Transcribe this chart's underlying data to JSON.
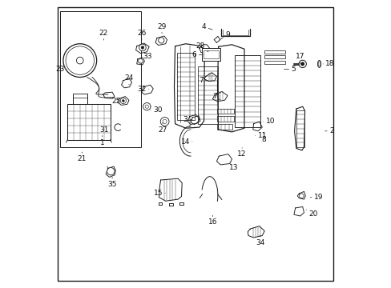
{
  "background_color": "#f5f5f5",
  "border_color": "#333333",
  "fig_width": 4.89,
  "fig_height": 3.6,
  "dpi": 100,
  "line_color": "#1a1a1a",
  "text_color": "#111111",
  "font_size": 6.5,
  "lw": 0.65,
  "part_labels": {
    "1": [
      0.175,
      0.535,
      0.0,
      -0.03
    ],
    "2": [
      0.942,
      0.545,
      0.028,
      0.0
    ],
    "3": [
      0.493,
      0.585,
      -0.03,
      0.0
    ],
    "4": [
      0.563,
      0.895,
      -0.035,
      0.012
    ],
    "5": [
      0.8,
      0.76,
      0.038,
      0.0
    ],
    "6": [
      0.53,
      0.81,
      -0.035,
      0.0
    ],
    "7a": [
      0.547,
      0.72,
      -0.03,
      0.0
    ],
    "7b": [
      0.59,
      0.65,
      -0.025,
      0.015
    ],
    "8": [
      0.735,
      0.545,
      0.0,
      -0.03
    ],
    "9": [
      0.58,
      0.86,
      0.03,
      0.02
    ],
    "10": [
      0.728,
      0.578,
      0.03,
      0.0
    ],
    "11": [
      0.7,
      0.53,
      0.03,
      0.0
    ],
    "12": [
      0.66,
      0.493,
      0.0,
      -0.028
    ],
    "13": [
      0.614,
      0.443,
      0.018,
      -0.025
    ],
    "14": [
      0.493,
      0.508,
      -0.03,
      0.0
    ],
    "15": [
      0.4,
      0.33,
      -0.03,
      0.0
    ],
    "16": [
      0.558,
      0.258,
      0.0,
      -0.03
    ],
    "17": [
      0.862,
      0.778,
      0.0,
      0.025
    ],
    "18": [
      0.935,
      0.778,
      0.03,
      0.0
    ],
    "19": [
      0.897,
      0.315,
      0.028,
      0.0
    ],
    "20": [
      0.882,
      0.272,
      0.025,
      -0.015
    ],
    "21": [
      0.105,
      0.478,
      -0.0,
      -0.03
    ],
    "22": [
      0.18,
      0.855,
      0.0,
      0.03
    ],
    "23": [
      0.06,
      0.76,
      -0.03,
      0.0
    ],
    "24": [
      0.268,
      0.7,
      0.0,
      0.028
    ],
    "25": [
      0.252,
      0.648,
      -0.028,
      0.0
    ],
    "26": [
      0.312,
      0.855,
      0.0,
      0.03
    ],
    "27": [
      0.385,
      0.575,
      0.0,
      -0.025
    ],
    "28": [
      0.543,
      0.82,
      -0.028,
      0.02
    ],
    "29": [
      0.382,
      0.878,
      0.0,
      0.03
    ],
    "30": [
      0.337,
      0.618,
      0.03,
      0.0
    ],
    "31": [
      0.213,
      0.548,
      -0.03,
      0.0
    ],
    "32": [
      0.342,
      0.69,
      -0.03,
      0.0
    ],
    "33": [
      0.306,
      0.783,
      0.025,
      0.02
    ],
    "34": [
      0.723,
      0.188,
      0.0,
      -0.03
    ],
    "35": [
      0.21,
      0.39,
      0.0,
      -0.03
    ]
  }
}
